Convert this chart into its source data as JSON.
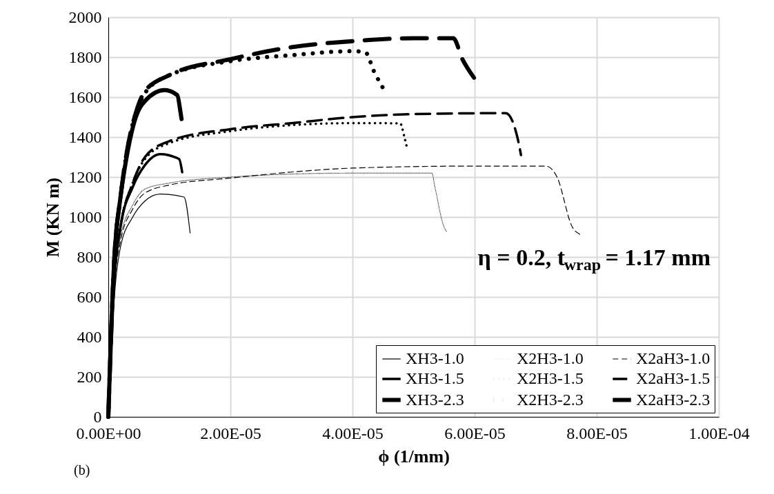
{
  "chart_data": {
    "type": "line",
    "xlabel": "ϕ (1/mm)",
    "ylabel": "M (KN m)",
    "xlim": [
      0,
      0.0001
    ],
    "ylim": [
      0,
      2000
    ],
    "xticks": [
      {
        "value": 0,
        "label": "0.00E+00"
      },
      {
        "value": 2e-05,
        "label": "2.00E-05"
      },
      {
        "value": 4e-05,
        "label": "4.00E-05"
      },
      {
        "value": 6e-05,
        "label": "6.00E-05"
      },
      {
        "value": 8e-05,
        "label": "8.00E-05"
      },
      {
        "value": 0.0001,
        "label": "1.00E-04"
      }
    ],
    "yticks": [
      0,
      200,
      400,
      600,
      800,
      1000,
      1200,
      1400,
      1600,
      1800,
      2000
    ],
    "grid": true,
    "legend": "bottom right",
    "marker": "none",
    "annotations": [
      "η = 0.2,   t$_{wrap}$ = 1.17 mm",
      "(b)"
    ],
    "series": [
      {
        "name": "XH3-1.0",
        "color": "#000000",
        "line_style": "solid",
        "x": [
          0,
          1e-06,
          2e-06,
          4e-06,
          6e-06,
          8.5e-06,
          1.24e-05,
          1.34e-05
        ],
        "values": [
          0,
          600,
          850,
          1000,
          1080,
          1115,
          1100,
          920
        ]
      },
      {
        "name": "X2H3-1.0",
        "color": "#000000",
        "line_style": "dotted",
        "x": [
          0,
          1e-06,
          2e-06,
          4e-06,
          6e-06,
          1e-05,
          2e-05,
          3e-05,
          4e-05,
          5.3e-05,
          5.35e-05,
          5.5e-05,
          5.55e-05
        ],
        "values": [
          0,
          650,
          900,
          1060,
          1140,
          1170,
          1200,
          1215,
          1220,
          1220,
          1150,
          950,
          924
        ]
      },
      {
        "name": "X2aH3-1.0",
        "color": "#000000",
        "line_style": "dashed",
        "x": [
          0,
          1e-06,
          2e-06,
          4e-06,
          6e-06,
          1e-05,
          2e-05,
          3e-05,
          4e-05,
          6e-05,
          7.17e-05,
          7.35e-05,
          7.6e-05,
          7.75e-05
        ],
        "values": [
          0,
          650,
          880,
          1040,
          1120,
          1160,
          1195,
          1225,
          1245,
          1255,
          1255,
          1200,
          950,
          910
        ]
      },
      {
        "name": "XH3-1.5",
        "color": "#000000",
        "line_style": "solid",
        "x": [
          0,
          1e-06,
          2e-06,
          4e-06,
          6e-06,
          8.5e-06,
          1.16e-05,
          1.21e-05
        ],
        "values": [
          0,
          700,
          950,
          1150,
          1260,
          1315,
          1290,
          1224
        ]
      },
      {
        "name": "X2H3-1.5",
        "color": "#000000",
        "line_style": "dotted",
        "x": [
          0,
          1e-06,
          2e-06,
          4e-06,
          6e-06,
          1e-05,
          2e-05,
          3e-05,
          4e-05,
          4.78e-05,
          4.85e-05,
          4.89e-05
        ],
        "values": [
          0,
          700,
          950,
          1170,
          1290,
          1370,
          1430,
          1460,
          1470,
          1469,
          1400,
          1350
        ]
      },
      {
        "name": "X2aH3-1.5",
        "color": "#000000",
        "line_style": "dashed",
        "x": [
          0,
          1e-06,
          2e-06,
          4e-06,
          6e-06,
          1e-05,
          2e-05,
          3e-05,
          4e-05,
          5e-05,
          6.51e-05,
          6.7e-05,
          6.76e-05
        ],
        "values": [
          0,
          700,
          950,
          1170,
          1300,
          1380,
          1440,
          1470,
          1500,
          1515,
          1520,
          1400,
          1310
        ]
      },
      {
        "name": "XH3-2.3",
        "color": "#000000",
        "line_style": "solid",
        "x": [
          0,
          1e-06,
          2e-06,
          3e-06,
          4.5e-06,
          6e-06,
          9.2e-06,
          1.13e-05,
          1.18e-05,
          1.2e-05
        ],
        "values": [
          0,
          800,
          1100,
          1300,
          1500,
          1580,
          1635,
          1610,
          1530,
          1490
        ]
      },
      {
        "name": "X2H3-2.3",
        "color": "#000000",
        "line_style": "dotted",
        "x": [
          0,
          1e-06,
          2e-06,
          3e-06,
          4.5e-06,
          6e-06,
          1e-05,
          2e-05,
          3e-05,
          4e-05,
          4.21e-05,
          4.35e-05,
          4.55e-05
        ],
        "values": [
          0,
          800,
          1100,
          1320,
          1520,
          1620,
          1710,
          1780,
          1810,
          1830,
          1825,
          1730,
          1620
        ]
      },
      {
        "name": "X2aH3-2.3",
        "color": "#000000",
        "line_style": "dashed",
        "x": [
          0,
          1e-06,
          2e-06,
          3e-06,
          4.5e-06,
          6e-06,
          1e-05,
          2e-05,
          3e-05,
          4e-05,
          5e-05,
          5.65e-05,
          5.8e-05,
          5.99e-05
        ],
        "values": [
          0,
          800,
          1100,
          1320,
          1520,
          1630,
          1710,
          1790,
          1850,
          1880,
          1895,
          1895,
          1790,
          1697
        ]
      }
    ]
  }
}
